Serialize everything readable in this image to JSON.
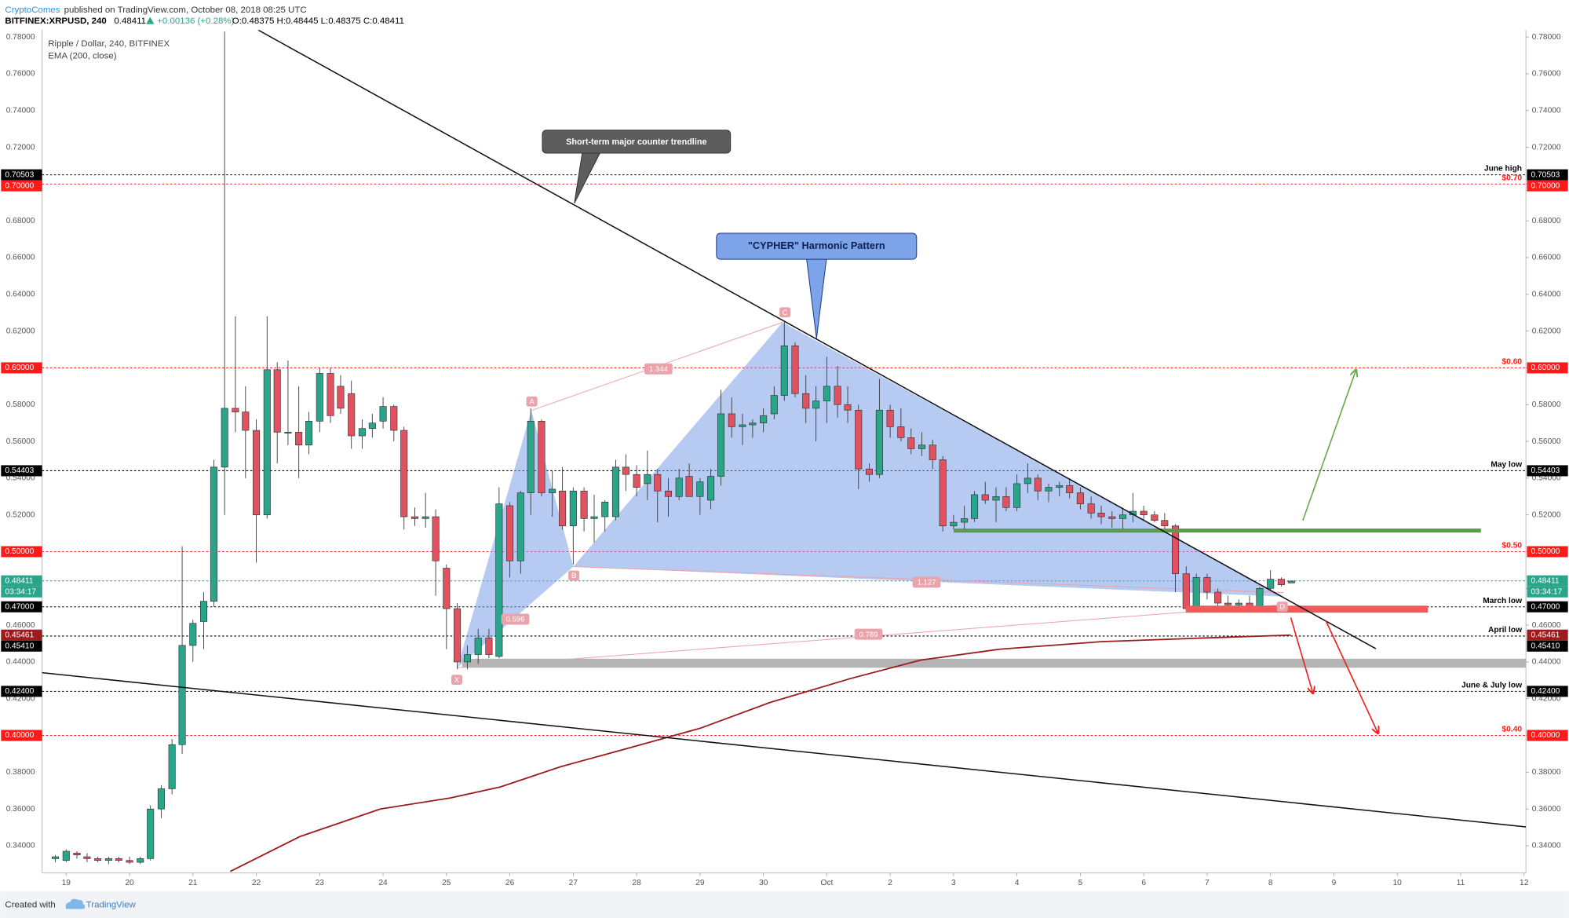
{
  "header": {
    "author": "CryptoComes",
    "published": "published on TradingView.com, October 08, 2018 08:25 UTC",
    "symbol": "BITFINEX:XRPUSD, 240",
    "last": "0.48411",
    "change": "+0.00136 (+0.28%)",
    "ohlc": "O:0.48375 H:0.48445 L:0.48375 C:0.48411"
  },
  "footer": {
    "created": "Created with",
    "brand": "TradingView"
  },
  "chart_data": {
    "type": "candlestick",
    "up_color": "#2ba58a",
    "down_color": "#e05260",
    "candles": {
      "name": "Ripple / Dollar, 240, BITFINEX",
      "x": [
        -0.17,
        0,
        0.17,
        0.33,
        0.5,
        0.67,
        0.83,
        1,
        1.17,
        1.33,
        1.5,
        1.67,
        1.83,
        2,
        2.17,
        2.33,
        2.5,
        2.67,
        2.83,
        3,
        3.17,
        3.33,
        3.5,
        3.67,
        3.83,
        4,
        4.17,
        4.33,
        4.5,
        4.67,
        4.83,
        5,
        5.17,
        5.33,
        5.5,
        5.67,
        5.83,
        6,
        6.17,
        6.33,
        6.5,
        6.67,
        6.83,
        7,
        7.17,
        7.33,
        7.5,
        7.67,
        7.83,
        8,
        8.17,
        8.33,
        8.5,
        8.67,
        8.83,
        9,
        9.17,
        9.33,
        9.5,
        9.67,
        9.83,
        10,
        10.17,
        10.33,
        10.5,
        10.67,
        10.83,
        11,
        11.17,
        11.33,
        11.5,
        11.67,
        11.83,
        12,
        12.17,
        12.33,
        12.5,
        12.67,
        12.83,
        13,
        13.17,
        13.33,
        13.5,
        13.67,
        13.83,
        14,
        14.17,
        14.33,
        14.5,
        14.67,
        14.83,
        15,
        15.17,
        15.33,
        15.5,
        15.67,
        15.83,
        16,
        16.17,
        16.33,
        16.5,
        16.67,
        16.83,
        17,
        17.17,
        17.33,
        17.5,
        17.67,
        17.83,
        18,
        18.17,
        18.33,
        18.5,
        18.67,
        18.83,
        19,
        19.17,
        19.33
      ],
      "open": [
        0.333,
        0.332,
        0.336,
        0.334,
        0.333,
        0.332,
        0.333,
        0.332,
        0.331,
        0.333,
        0.36,
        0.371,
        0.395,
        0.449,
        0.462,
        0.473,
        0.546,
        0.578,
        0.576,
        0.566,
        0.52,
        0.599,
        0.565,
        0.565,
        0.558,
        0.571,
        0.597,
        0.59,
        0.586,
        0.563,
        0.567,
        0.571,
        0.579,
        0.566,
        0.519,
        0.518,
        0.519,
        0.491,
        0.469,
        0.44,
        0.444,
        0.453,
        0.443,
        0.525,
        0.495,
        0.532,
        0.571,
        0.532,
        0.533,
        0.514,
        0.533,
        0.518,
        0.519,
        0.519,
        0.546,
        0.542,
        0.537,
        0.542,
        0.533,
        0.53,
        0.541,
        0.53,
        0.528,
        0.541,
        0.575,
        0.568,
        0.569,
        0.57,
        0.575,
        0.585,
        0.612,
        0.586,
        0.578,
        0.582,
        0.59,
        0.58,
        0.577,
        0.545,
        0.542,
        0.577,
        0.568,
        0.562,
        0.556,
        0.558,
        0.55,
        0.514,
        0.516,
        0.518,
        0.531,
        0.528,
        0.53,
        0.524,
        0.537,
        0.54,
        0.533,
        0.535,
        0.536,
        0.532,
        0.526,
        0.521,
        0.519,
        0.518,
        0.52,
        0.522,
        0.52,
        0.517,
        0.514,
        0.488,
        0.47,
        0.486,
        0.478,
        0.472,
        0.471,
        0.472,
        0.47,
        0.48,
        0.485,
        0.483
      ],
      "high": [
        0.335,
        0.338,
        0.337,
        0.336,
        0.334,
        0.334,
        0.334,
        0.334,
        0.334,
        0.362,
        0.373,
        0.398,
        0.503,
        0.463,
        0.478,
        0.55,
        0.783,
        0.628,
        0.59,
        0.572,
        0.628,
        0.603,
        0.604,
        0.59,
        0.576,
        0.6,
        0.6,
        0.596,
        0.593,
        0.572,
        0.575,
        0.584,
        0.58,
        0.568,
        0.524,
        0.532,
        0.523,
        0.493,
        0.472,
        0.449,
        0.458,
        0.458,
        0.535,
        0.527,
        0.533,
        0.578,
        0.572,
        0.544,
        0.546,
        0.535,
        0.535,
        0.531,
        0.528,
        0.55,
        0.553,
        0.547,
        0.555,
        0.545,
        0.54,
        0.545,
        0.548,
        0.54,
        0.545,
        0.588,
        0.584,
        0.575,
        0.572,
        0.578,
        0.59,
        0.625,
        0.614,
        0.596,
        0.59,
        0.606,
        0.601,
        0.59,
        0.58,
        0.548,
        0.594,
        0.58,
        0.578,
        0.567,
        0.565,
        0.561,
        0.552,
        0.52,
        0.525,
        0.533,
        0.538,
        0.535,
        0.535,
        0.542,
        0.548,
        0.542,
        0.537,
        0.538,
        0.54,
        0.535,
        0.53,
        0.525,
        0.522,
        0.524,
        0.532,
        0.525,
        0.522,
        0.521,
        0.515,
        0.492,
        0.488,
        0.488,
        0.48,
        0.476,
        0.474,
        0.476,
        0.481,
        0.49,
        0.486,
        0.484
      ],
      "low": [
        0.331,
        0.331,
        0.333,
        0.331,
        0.331,
        0.33,
        0.331,
        0.33,
        0.33,
        0.332,
        0.355,
        0.368,
        0.39,
        0.44,
        0.447,
        0.47,
        0.52,
        0.565,
        0.54,
        0.494,
        0.518,
        0.548,
        0.558,
        0.54,
        0.553,
        0.565,
        0.57,
        0.575,
        0.556,
        0.556,
        0.562,
        0.567,
        0.56,
        0.512,
        0.514,
        0.513,
        0.476,
        0.447,
        0.436,
        0.436,
        0.439,
        0.442,
        0.442,
        0.486,
        0.488,
        0.52,
        0.53,
        0.519,
        0.512,
        0.493,
        0.511,
        0.505,
        0.511,
        0.517,
        0.533,
        0.53,
        0.528,
        0.516,
        0.519,
        0.528,
        0.53,
        0.52,
        0.523,
        0.536,
        0.562,
        0.558,
        0.562,
        0.565,
        0.572,
        0.582,
        0.584,
        0.57,
        0.56,
        0.57,
        0.573,
        0.57,
        0.534,
        0.538,
        0.54,
        0.562,
        0.56,
        0.553,
        0.552,
        0.545,
        0.511,
        0.512,
        0.512,
        0.516,
        0.526,
        0.516,
        0.522,
        0.522,
        0.532,
        0.528,
        0.527,
        0.53,
        0.529,
        0.523,
        0.518,
        0.515,
        0.513,
        0.512,
        0.516,
        0.517,
        0.516,
        0.512,
        0.478,
        0.468,
        0.468,
        0.474,
        0.469,
        0.469,
        0.469,
        0.468,
        0.469,
        0.479,
        0.481,
        0.483
      ],
      "close": [
        0.334,
        0.337,
        0.335,
        0.333,
        0.332,
        0.333,
        0.332,
        0.331,
        0.333,
        0.36,
        0.371,
        0.395,
        0.449,
        0.461,
        0.473,
        0.546,
        0.578,
        0.576,
        0.566,
        0.52,
        0.599,
        0.565,
        0.565,
        0.558,
        0.571,
        0.597,
        0.574,
        0.578,
        0.563,
        0.567,
        0.57,
        0.579,
        0.566,
        0.519,
        0.518,
        0.519,
        0.495,
        0.469,
        0.44,
        0.444,
        0.453,
        0.444,
        0.526,
        0.495,
        0.532,
        0.571,
        0.532,
        0.534,
        0.514,
        0.533,
        0.518,
        0.519,
        0.527,
        0.546,
        0.542,
        0.535,
        0.542,
        0.533,
        0.53,
        0.54,
        0.53,
        0.538,
        0.541,
        0.575,
        0.568,
        0.569,
        0.57,
        0.574,
        0.585,
        0.612,
        0.586,
        0.578,
        0.582,
        0.59,
        0.58,
        0.577,
        0.545,
        0.542,
        0.577,
        0.568,
        0.562,
        0.556,
        0.558,
        0.55,
        0.514,
        0.516,
        0.518,
        0.531,
        0.528,
        0.53,
        0.524,
        0.537,
        0.54,
        0.533,
        0.535,
        0.536,
        0.532,
        0.526,
        0.521,
        0.519,
        0.518,
        0.52,
        0.522,
        0.52,
        0.517,
        0.514,
        0.488,
        0.469,
        0.486,
        0.478,
        0.472,
        0.471,
        0.472,
        0.469,
        0.48,
        0.485,
        0.482,
        0.484
      ]
    },
    "ema": {
      "name": "EMA (200, close)",
      "color": "#9b1c1c",
      "x": [
        2.59,
        3.69,
        4.96,
        6.06,
        6.85,
        7.8,
        8.75,
        10.01,
        11.11,
        12.38,
        13.48,
        14.74,
        16.32,
        17.9,
        19.32
      ],
      "values": [
        0.326,
        0.345,
        0.36,
        0.366,
        0.372,
        0.383,
        0.392,
        0.404,
        0.418,
        0.431,
        0.441,
        0.447,
        0.451,
        0.453,
        0.4546
      ]
    },
    "xlim": [
      -0.38,
      23.03
    ],
    "xticks": [
      {
        "value": 0,
        "label": "19"
      },
      {
        "value": 1,
        "label": "20"
      },
      {
        "value": 2,
        "label": "21"
      },
      {
        "value": 3,
        "label": "22"
      },
      {
        "value": 4,
        "label": "23"
      },
      {
        "value": 5,
        "label": "24"
      },
      {
        "value": 6,
        "label": "25"
      },
      {
        "value": 7,
        "label": "26"
      },
      {
        "value": 8,
        "label": "27"
      },
      {
        "value": 9,
        "label": "28"
      },
      {
        "value": 10,
        "label": "29"
      },
      {
        "value": 11,
        "label": "30"
      },
      {
        "value": 12,
        "label": "Oct"
      },
      {
        "value": 13,
        "label": "2"
      },
      {
        "value": 14,
        "label": "3"
      },
      {
        "value": 15,
        "label": "4"
      },
      {
        "value": 16,
        "label": "5"
      },
      {
        "value": 17,
        "label": "6"
      },
      {
        "value": 18,
        "label": "7"
      },
      {
        "value": 19,
        "label": "8"
      },
      {
        "value": 20,
        "label": "9"
      },
      {
        "value": 21,
        "label": "10"
      },
      {
        "value": 22,
        "label": "11"
      },
      {
        "value": 23,
        "label": "12"
      }
    ],
    "ylim": [
      0.3252,
      0.7838
    ],
    "yticks": [
      {
        "value": 0.34,
        "label": "0.34000"
      },
      {
        "value": 0.36,
        "label": "0.36000"
      },
      {
        "value": 0.38,
        "label": "0.38000"
      },
      {
        "value": 0.4,
        "label": "0.40000"
      },
      {
        "value": 0.42,
        "label": "0.42000"
      },
      {
        "value": 0.44,
        "label": "0.44000"
      },
      {
        "value": 0.46,
        "label": "0.46000"
      },
      {
        "value": 0.48,
        "label": "0.48000"
      },
      {
        "value": 0.5,
        "label": "0.50000"
      },
      {
        "value": 0.52,
        "label": "0.52000"
      },
      {
        "value": 0.54,
        "label": "0.54000"
      },
      {
        "value": 0.56,
        "label": "0.56000"
      },
      {
        "value": 0.58,
        "label": "0.58000"
      },
      {
        "value": 0.6,
        "label": "0.60000"
      },
      {
        "value": 0.62,
        "label": "0.62000"
      },
      {
        "value": 0.64,
        "label": "0.64000"
      },
      {
        "value": 0.66,
        "label": "0.66000"
      },
      {
        "value": 0.68,
        "label": "0.68000"
      },
      {
        "value": 0.7,
        "label": "0.70000"
      },
      {
        "value": 0.72,
        "label": "0.72000"
      },
      {
        "value": 0.74,
        "label": "0.74000"
      },
      {
        "value": 0.76,
        "label": "0.76000"
      },
      {
        "value": 0.78,
        "label": "0.78000"
      }
    ],
    "levels": [
      {
        "value": 0.70503,
        "text": "June high",
        "color": "#000000",
        "line": true
      },
      {
        "value": 0.7,
        "label": "0.70000",
        "text": "$0.70",
        "color": "#ff1a1a",
        "line": true
      },
      {
        "value": 0.6,
        "label": "0.60000",
        "text": "$0.60",
        "color": "#ff1a1a",
        "line": true
      },
      {
        "value": 0.54403,
        "text": "May low",
        "color": "#000000",
        "line": true
      },
      {
        "value": 0.5,
        "label": "0.50000",
        "text": "$0.50",
        "color": "#ff1a1a",
        "line": true
      },
      {
        "value": 0.48411,
        "color": "#2ba58a",
        "line": true,
        "countdown": "03:34:17"
      },
      {
        "value": 0.47,
        "label": "0.47000",
        "text": "March low",
        "color": "#000000",
        "line": true
      },
      {
        "value": 0.45461,
        "color": "#9b1c1c",
        "line": false
      },
      {
        "value": 0.4541,
        "label": "0.45410",
        "text": "April low",
        "color": "#000000",
        "line": true
      },
      {
        "value": 0.424,
        "label": "0.42400",
        "text": "June & July low",
        "color": "#000000",
        "line": true
      },
      {
        "value": 0.4,
        "label": "0.40000",
        "text": "$0.40",
        "color": "#ff1a1a",
        "line": true
      }
    ],
    "annotations": [
      "Short-term major counter trendline",
      "\"CYPHER\" Harmonic Pattern"
    ],
    "pattern_points": [
      "X",
      "A",
      "B",
      "C",
      "D"
    ],
    "pattern_ratios": [
      "1.344",
      "0.596",
      "1.127",
      "0.789"
    ]
  }
}
